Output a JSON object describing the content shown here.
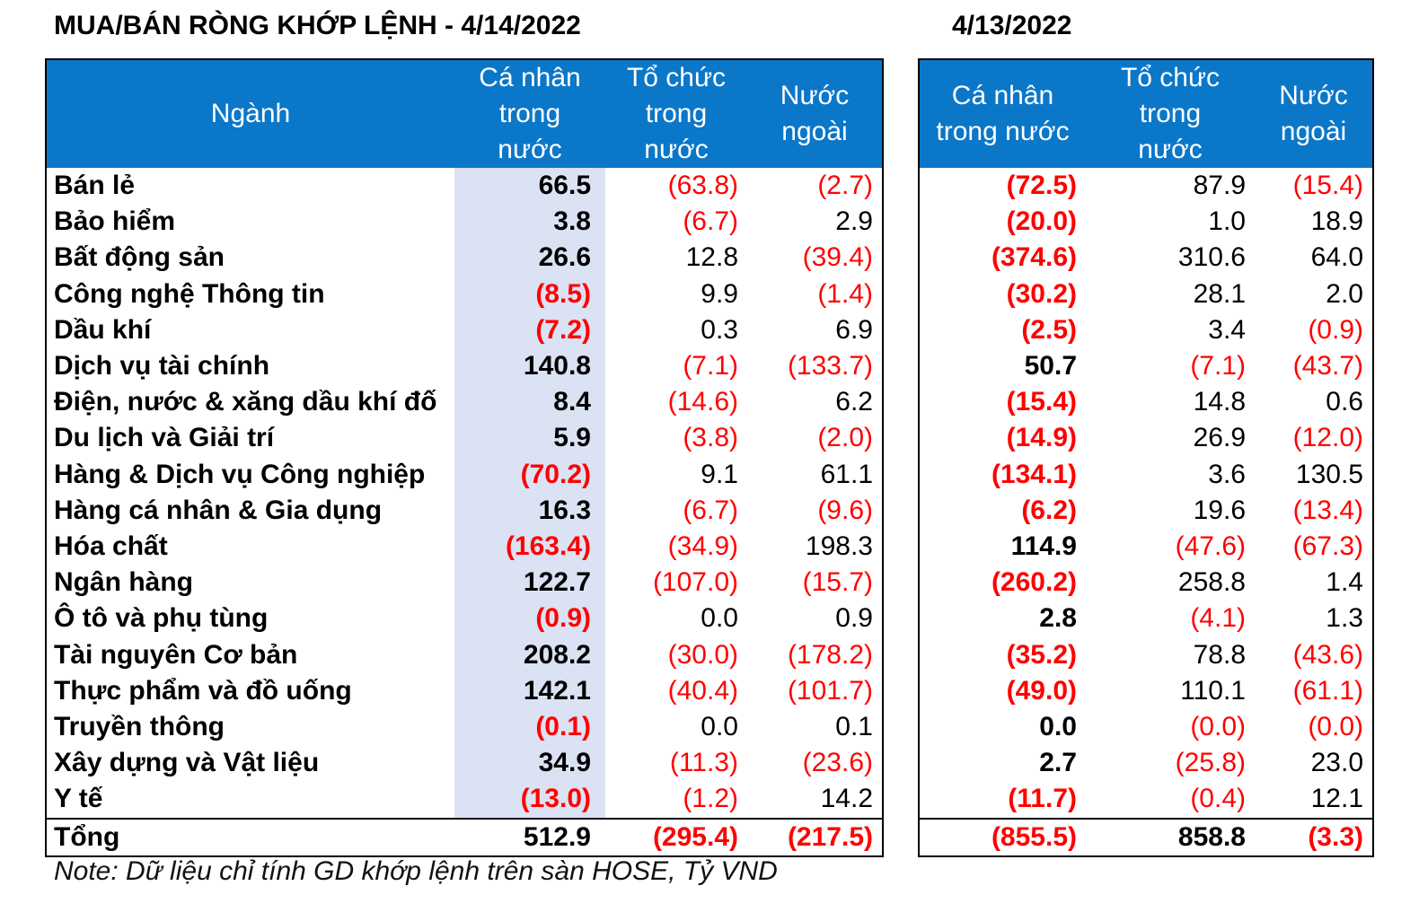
{
  "title_left": "MUA/BÁN RÒNG KHỚP LỆNH - 4/14/2022",
  "title_right": "4/13/2022",
  "headers_left": {
    "sector": "Ngành",
    "individual": "Cá nhân trong nước",
    "institution": "Tổ chức trong nước",
    "foreign": "Nước ngoài"
  },
  "headers_right": {
    "individual": "Cá nhân trong nước",
    "institution": "Tổ chức trong nước",
    "foreign": "Nước ngoài"
  },
  "rows": [
    {
      "name": "Bán lẻ",
      "d1_ind": "66.5",
      "d1_org": "(63.8)",
      "d1_for": "(2.7)",
      "d2_ind": "(72.5)",
      "d2_org": "87.9",
      "d2_for": "(15.4)"
    },
    {
      "name": "Bảo hiểm",
      "d1_ind": "3.8",
      "d1_org": "(6.7)",
      "d1_for": "2.9",
      "d2_ind": "(20.0)",
      "d2_org": "1.0",
      "d2_for": "18.9"
    },
    {
      "name": "Bất động sản",
      "d1_ind": "26.6",
      "d1_org": "12.8",
      "d1_for": "(39.4)",
      "d2_ind": "(374.6)",
      "d2_org": "310.6",
      "d2_for": "64.0"
    },
    {
      "name": "Công nghệ Thông tin",
      "d1_ind": "(8.5)",
      "d1_org": "9.9",
      "d1_for": "(1.4)",
      "d2_ind": "(30.2)",
      "d2_org": "28.1",
      "d2_for": "2.0"
    },
    {
      "name": "Dầu khí",
      "d1_ind": "(7.2)",
      "d1_org": "0.3",
      "d1_for": "6.9",
      "d2_ind": "(2.5)",
      "d2_org": "3.4",
      "d2_for": "(0.9)"
    },
    {
      "name": "Dịch vụ tài chính",
      "d1_ind": "140.8",
      "d1_org": "(7.1)",
      "d1_for": "(133.7)",
      "d2_ind": "50.7",
      "d2_org": "(7.1)",
      "d2_for": "(43.7)"
    },
    {
      "name": "Điện, nước & xăng dầu khí đố",
      "d1_ind": "8.4",
      "d1_org": "(14.6)",
      "d1_for": "6.2",
      "d2_ind": "(15.4)",
      "d2_org": "14.8",
      "d2_for": "0.6"
    },
    {
      "name": "Du lịch và Giải trí",
      "d1_ind": "5.9",
      "d1_org": "(3.8)",
      "d1_for": "(2.0)",
      "d2_ind": "(14.9)",
      "d2_org": "26.9",
      "d2_for": "(12.0)"
    },
    {
      "name": "Hàng & Dịch vụ Công nghiệp",
      "d1_ind": "(70.2)",
      "d1_org": "9.1",
      "d1_for": "61.1",
      "d2_ind": "(134.1)",
      "d2_org": "3.6",
      "d2_for": "130.5"
    },
    {
      "name": "Hàng cá nhân & Gia dụng",
      "d1_ind": "16.3",
      "d1_org": "(6.7)",
      "d1_for": "(9.6)",
      "d2_ind": "(6.2)",
      "d2_org": "19.6",
      "d2_for": "(13.4)"
    },
    {
      "name": "Hóa chất",
      "d1_ind": "(163.4)",
      "d1_org": "(34.9)",
      "d1_for": "198.3",
      "d2_ind": "114.9",
      "d2_org": "(47.6)",
      "d2_for": "(67.3)"
    },
    {
      "name": "Ngân hàng",
      "d1_ind": "122.7",
      "d1_org": "(107.0)",
      "d1_for": "(15.7)",
      "d2_ind": "(260.2)",
      "d2_org": "258.8",
      "d2_for": "1.4"
    },
    {
      "name": "Ô tô và phụ tùng",
      "d1_ind": "(0.9)",
      "d1_org": "0.0",
      "d1_for": "0.9",
      "d2_ind": "2.8",
      "d2_org": "(4.1)",
      "d2_for": "1.3"
    },
    {
      "name": "Tài nguyên Cơ bản",
      "d1_ind": "208.2",
      "d1_org": "(30.0)",
      "d1_for": "(178.2)",
      "d2_ind": "(35.2)",
      "d2_org": "78.8",
      "d2_for": "(43.6)"
    },
    {
      "name": "Thực phẩm và đồ uống",
      "d1_ind": "142.1",
      "d1_org": "(40.4)",
      "d1_for": "(101.7)",
      "d2_ind": "(49.0)",
      "d2_org": "110.1",
      "d2_for": "(61.1)"
    },
    {
      "name": "Truyền thông",
      "d1_ind": "(0.1)",
      "d1_org": "0.0",
      "d1_for": "0.1",
      "d2_ind": "0.0",
      "d2_org": "(0.0)",
      "d2_for": "(0.0)"
    },
    {
      "name": "Xây dựng và Vật liệu",
      "d1_ind": "34.9",
      "d1_org": "(11.3)",
      "d1_for": "(23.6)",
      "d2_ind": "2.7",
      "d2_org": "(25.8)",
      "d2_for": "23.0"
    },
    {
      "name": "Y tế",
      "d1_ind": "(13.0)",
      "d1_org": "(1.2)",
      "d1_for": "14.2",
      "d2_ind": "(11.7)",
      "d2_org": "(0.4)",
      "d2_for": "12.1"
    }
  ],
  "total": {
    "name": "Tổng",
    "d1_ind": "512.9",
    "d1_org": "(295.4)",
    "d1_for": "(217.5)",
    "d2_ind": "(855.5)",
    "d2_org": "858.8",
    "d2_for": "(3.3)"
  },
  "note": "Note: Dữ liệu chỉ tính GD khớp lệnh trên sàn HOSE, Tỷ VND",
  "colors": {
    "header_bg": "#0b77c9",
    "negative": "#ff0000",
    "highlight_col": "#dbe2f3"
  }
}
